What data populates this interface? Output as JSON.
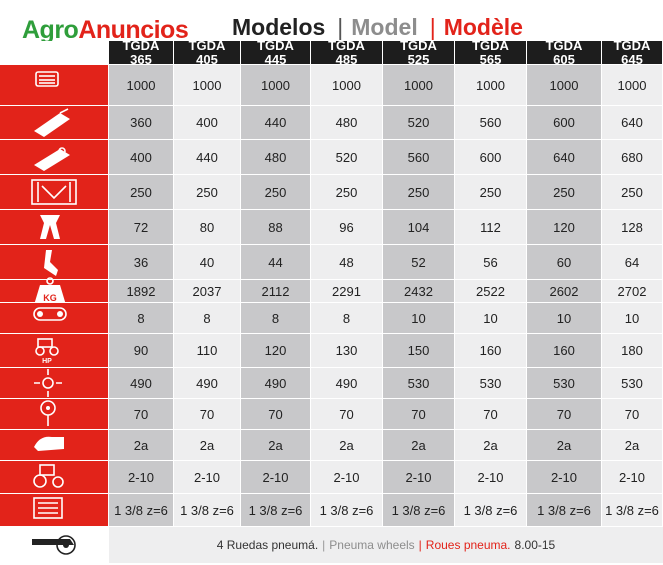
{
  "logo": {
    "part1": "Agro",
    "part2": "Anuncios"
  },
  "title": {
    "es": "Modelos",
    "en": "Model",
    "fr": "Modèle",
    "separator": "|"
  },
  "models": [
    {
      "line1": "TGDA",
      "line2": "365"
    },
    {
      "line1": "TGDA",
      "line2": "405"
    },
    {
      "line1": "TGDA",
      "line2": "445"
    },
    {
      "line1": "TGDA",
      "line2": "485"
    },
    {
      "line1": "TGDA",
      "line2": "525"
    },
    {
      "line1": "TGDA",
      "line2": "565"
    },
    {
      "line1": "TGDA",
      "line2": "605"
    },
    {
      "line1": "TGDA",
      "line2": "645"
    }
  ],
  "rows": [
    {
      "icon": "gearbox-icon",
      "values": [
        "1000",
        "1000",
        "1000",
        "1000",
        "1000",
        "1000",
        "1000",
        "1000"
      ]
    },
    {
      "icon": "working-width-harrow-icon",
      "values": [
        "360",
        "400",
        "440",
        "480",
        "520",
        "560",
        "600",
        "640"
      ]
    },
    {
      "icon": "total-width-harrow-icon",
      "values": [
        "400",
        "440",
        "480",
        "520",
        "560",
        "600",
        "640",
        "680"
      ]
    },
    {
      "icon": "transport-width-icon",
      "values": [
        "250",
        "250",
        "250",
        "250",
        "250",
        "250",
        "250",
        "250"
      ]
    },
    {
      "icon": "tines-icon",
      "values": [
        "72",
        "80",
        "88",
        "96",
        "104",
        "112",
        "120",
        "128"
      ]
    },
    {
      "icon": "rotor-icon",
      "values": [
        "36",
        "40",
        "44",
        "48",
        "52",
        "56",
        "60",
        "64"
      ]
    },
    {
      "icon": "weight-kg-icon",
      "values": [
        "1892",
        "2037",
        "2112",
        "2291",
        "2432",
        "2522",
        "2602",
        "2702"
      ]
    },
    {
      "icon": "chain-drive-icon",
      "values": [
        "8",
        "8",
        "8",
        "8",
        "10",
        "10",
        "10",
        "10"
      ]
    },
    {
      "icon": "tractor-hp-icon",
      "values": [
        "90",
        "110",
        "120",
        "130",
        "150",
        "160",
        "160",
        "180"
      ]
    },
    {
      "icon": "rotor-speed-icon",
      "values": [
        "490",
        "490",
        "490",
        "490",
        "530",
        "530",
        "530",
        "530"
      ]
    },
    {
      "icon": "tine-diameter-icon",
      "values": [
        "70",
        "70",
        "70",
        "70",
        "70",
        "70",
        "70",
        "70"
      ]
    },
    {
      "icon": "hydraulic-icon",
      "values": [
        "2a",
        "2a",
        "2a",
        "2a",
        "2a",
        "2a",
        "2a",
        "2a"
      ]
    },
    {
      "icon": "tractor-category-icon",
      "values": [
        "2-10",
        "2-10",
        "2-10",
        "2-10",
        "2-10",
        "2-10",
        "2-10",
        "2-10"
      ]
    },
    {
      "icon": "pto-shaft-icon",
      "values": [
        "1 3/8 z=6",
        "1 3/8 z=6",
        "1 3/8 z=6",
        "1 3/8 z=6",
        "1 3/8 z=6",
        "1 3/8 z=6",
        "1 3/8 z=6",
        "1 3/8 z=6"
      ]
    }
  ],
  "footer": {
    "icon": "packer-roller-icon",
    "es": "4 Ruedas pneumá.",
    "en": "Pneuma wheels",
    "fr": "Roues pneuma.",
    "separator": "|",
    "size": "8.00-15"
  },
  "colors": {
    "red": "#e2231a",
    "green": "#2f9e3b",
    "header_bg": "#1d1d1d",
    "grey_col": "#c8c8ca",
    "light_col": "#eeeeef"
  }
}
